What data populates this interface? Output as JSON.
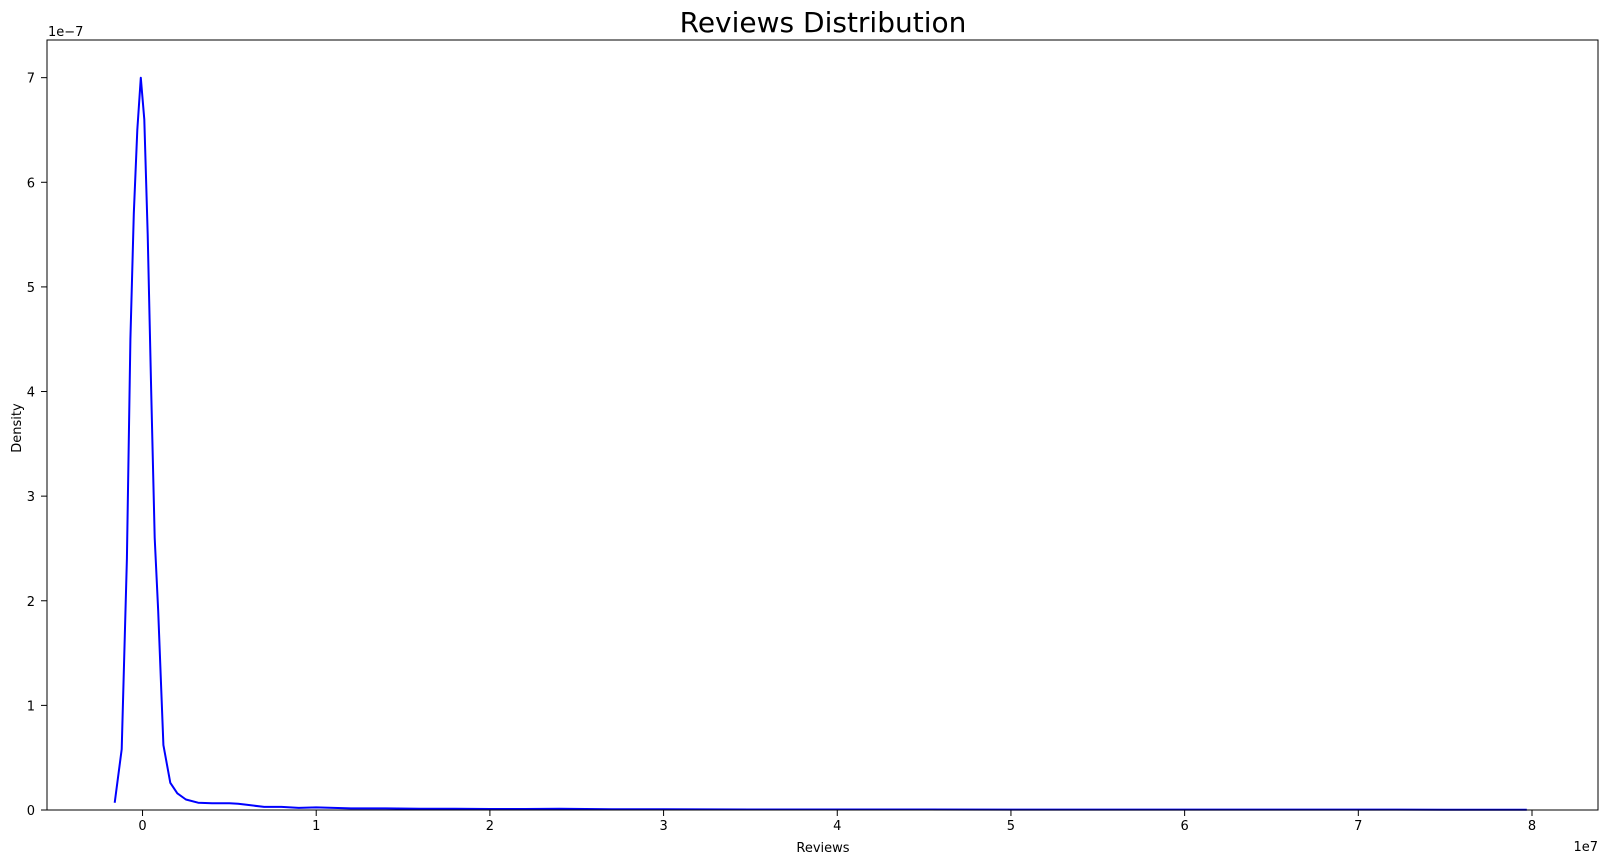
{
  "chart_data": {
    "type": "line",
    "title": "Reviews Distribution",
    "xlabel": "Reviews",
    "ylabel": "Density",
    "x_offset_label": "1e7",
    "y_offset_label": "1e−7",
    "xlim": [
      -0.55,
      8.38
    ],
    "ylim": [
      0,
      7.36
    ],
    "x_ticks": [
      0,
      1,
      2,
      3,
      4,
      5,
      6,
      7,
      8
    ],
    "x_tick_labels": [
      "0",
      "1",
      "2",
      "3",
      "4",
      "5",
      "6",
      "7",
      "8"
    ],
    "y_ticks": [
      0,
      1,
      2,
      3,
      4,
      5,
      6,
      7
    ],
    "y_tick_labels": [
      "0",
      "1",
      "2",
      "3",
      "4",
      "5",
      "6",
      "7"
    ],
    "grid": false,
    "legend": "none",
    "series": [
      {
        "color": "#0000ff",
        "x": [
          -0.16,
          -0.12,
          -0.09,
          -0.07,
          -0.05,
          -0.03,
          -0.01,
          0.01,
          0.03,
          0.05,
          0.07,
          0.09,
          0.12,
          0.16,
          0.2,
          0.25,
          0.32,
          0.4,
          0.5,
          0.55,
          0.6,
          0.7,
          0.8,
          0.9,
          1.0,
          1.1,
          1.2,
          1.4,
          1.6,
          1.8,
          2.0,
          2.2,
          2.4,
          2.7,
          3.0,
          3.5,
          4.0,
          4.5,
          5.0,
          5.5,
          6.0,
          6.5,
          7.0,
          7.5,
          7.97
        ],
        "y": [
          0.07,
          0.58,
          2.4,
          4.5,
          5.7,
          6.5,
          7.0,
          6.6,
          5.5,
          4.0,
          2.6,
          1.9,
          0.62,
          0.26,
          0.16,
          0.1,
          0.07,
          0.065,
          0.065,
          0.06,
          0.05,
          0.03,
          0.03,
          0.02,
          0.025,
          0.02,
          0.015,
          0.015,
          0.012,
          0.012,
          0.01,
          0.01,
          0.012,
          0.008,
          0.008,
          0.005,
          0.005,
          0.005,
          0.004,
          0.004,
          0.004,
          0.004,
          0.004,
          0.003,
          0.002
        ]
      }
    ]
  }
}
